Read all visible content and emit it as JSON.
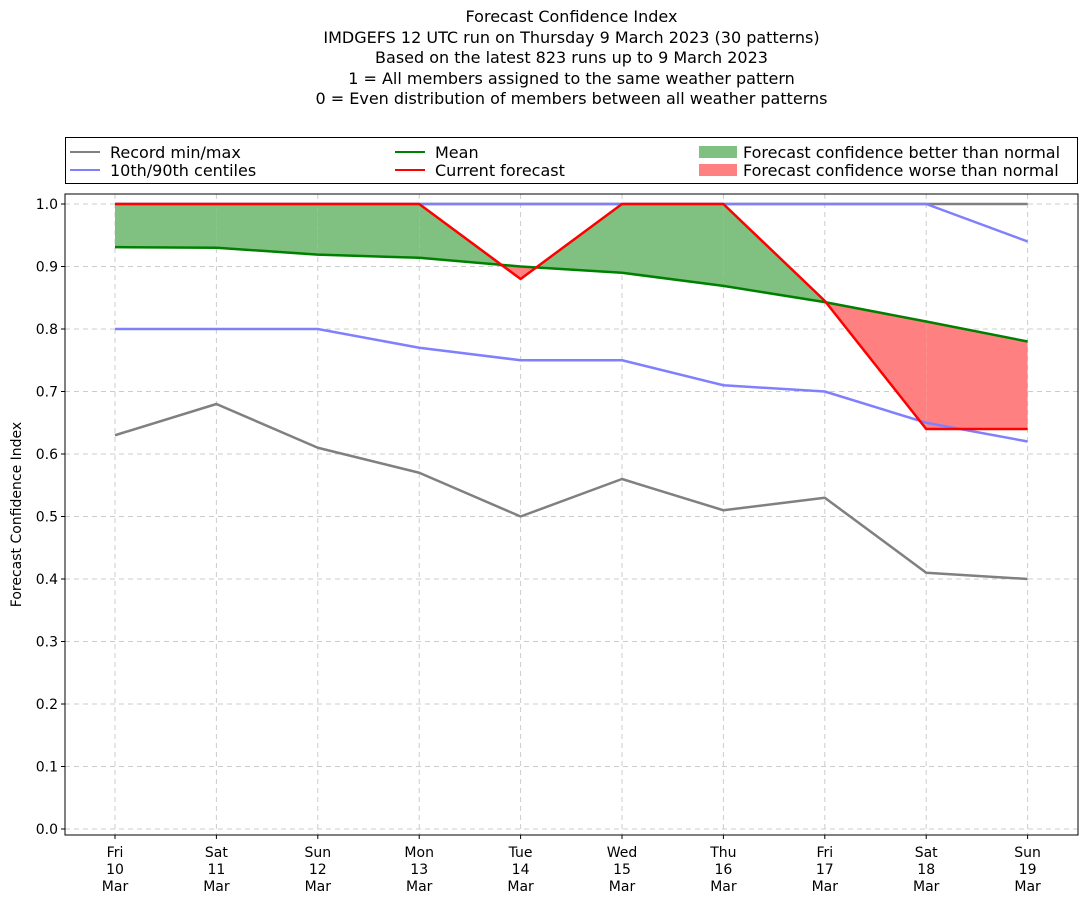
{
  "titles": [
    "Forecast Confidence Index",
    "IMDGEFS 12 UTC run on Thursday 9 March 2023 (30 patterns)",
    "Based on the latest 823 runs up to 9 March 2023",
    "1 = All members assigned to the same weather pattern",
    "0 = Even distribution of members between all weather patterns"
  ],
  "legend": {
    "record": "Record min/max",
    "centiles": "10th/90th centiles",
    "mean": "Mean",
    "current": "Current forecast",
    "better": "Forecast confidence better than normal",
    "worse": "Forecast confidence worse than normal"
  },
  "colors": {
    "record": "#808080",
    "centiles": "#8080ff",
    "mean": "#008000",
    "current": "#ff0000",
    "better": "#80c080",
    "worse": "#ff8080",
    "grid": "#cccccc"
  },
  "chart_data": {
    "type": "line",
    "title": "Forecast Confidence Index",
    "ylabel": "Forecast Confidence Index",
    "xlabel": "",
    "ylim": [
      0,
      1
    ],
    "yticks": [
      "0.0",
      "0.1",
      "0.2",
      "0.3",
      "0.4",
      "0.5",
      "0.6",
      "0.7",
      "0.8",
      "0.9",
      "1.0"
    ],
    "grid": true,
    "legend_position": "top",
    "categories": [
      [
        "Fri",
        "10",
        "Mar"
      ],
      [
        "Sat",
        "11",
        "Mar"
      ],
      [
        "Sun",
        "12",
        "Mar"
      ],
      [
        "Mon",
        "13",
        "Mar"
      ],
      [
        "Tue",
        "14",
        "Mar"
      ],
      [
        "Wed",
        "15",
        "Mar"
      ],
      [
        "Thu",
        "16",
        "Mar"
      ],
      [
        "Fri",
        "17",
        "Mar"
      ],
      [
        "Sat",
        "18",
        "Mar"
      ],
      [
        "Sun",
        "19",
        "Mar"
      ]
    ],
    "series": [
      {
        "name": "Record max",
        "values": [
          1.0,
          1.0,
          1.0,
          1.0,
          1.0,
          1.0,
          1.0,
          1.0,
          1.0,
          1.0
        ]
      },
      {
        "name": "Record min",
        "values": [
          0.63,
          0.68,
          0.61,
          0.57,
          0.5,
          0.56,
          0.51,
          0.53,
          0.41,
          0.4
        ]
      },
      {
        "name": "90th centile",
        "values": [
          1.0,
          1.0,
          1.0,
          1.0,
          1.0,
          1.0,
          1.0,
          1.0,
          1.0,
          0.94
        ]
      },
      {
        "name": "10th centile",
        "values": [
          0.8,
          0.8,
          0.8,
          0.77,
          0.75,
          0.75,
          0.71,
          0.7,
          0.65,
          0.62
        ]
      },
      {
        "name": "Mean",
        "values": [
          0.931,
          0.93,
          0.919,
          0.914,
          0.9,
          0.89,
          0.869,
          0.843,
          0.812,
          0.78
        ]
      },
      {
        "name": "Current forecast",
        "values": [
          1.0,
          1.0,
          1.0,
          1.0,
          0.88,
          1.0,
          1.0,
          0.845,
          0.64,
          0.64
        ]
      }
    ]
  }
}
